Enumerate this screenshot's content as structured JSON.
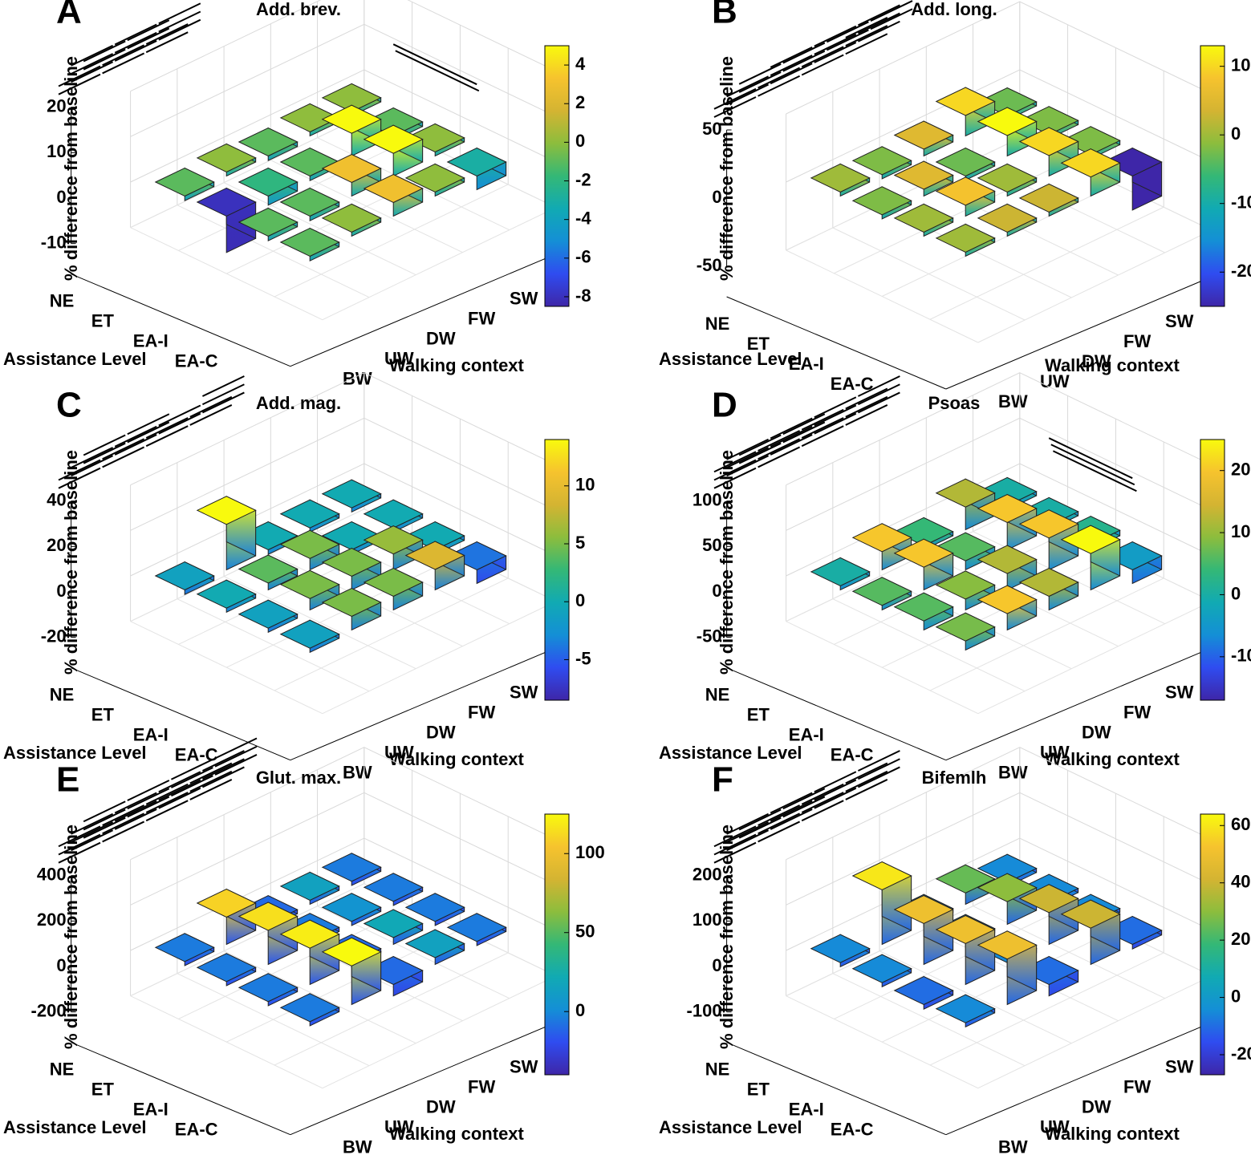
{
  "figure": {
    "row_labels": [
      "NE",
      "ET",
      "EA-I",
      "EA-C"
    ],
    "col_labels": [
      "BW",
      "UW",
      "DW",
      "FW",
      "SW"
    ],
    "ylabel": "% difference from baseline",
    "xlabel": "Walking context",
    "rowaxis_label": "Assistance Level"
  },
  "colormap": {
    "name": "parula",
    "stops": [
      "#3e26a8",
      "#2f4cf0",
      "#148fd6",
      "#11aab3",
      "#34b876",
      "#8cbd3d",
      "#d4b432",
      "#f6c32e",
      "#f8fa0d"
    ]
  },
  "chart_data": [
    {
      "type": "bar3d",
      "letter": "A",
      "title": "Add. brev.",
      "zticks": [
        20,
        10,
        0,
        -10
      ],
      "zlim": [
        -12,
        20
      ],
      "cbar_ticks": [
        4,
        2,
        0,
        -2,
        -4,
        -6,
        -8
      ],
      "cbar_lim": [
        -8.5,
        5
      ],
      "values": [
        [
          -1,
          0,
          -1,
          0,
          0
        ],
        [
          -8,
          -2,
          -1,
          5,
          -1
        ],
        [
          -1,
          -1,
          3,
          5,
          0
        ],
        [
          -1,
          0,
          3,
          0,
          -3
        ]
      ],
      "colors": [
        [
          -1,
          0,
          -1,
          0,
          0
        ],
        [
          -8,
          -2,
          -1,
          5,
          -1
        ],
        [
          -1,
          -1,
          3,
          5,
          0
        ],
        [
          -1,
          0,
          3,
          0,
          -3
        ]
      ],
      "sig_lines": [
        [
          2,
          2,
          2
        ],
        [
          3,
          3,
          3
        ],
        [
          2,
          2
        ]
      ],
      "sig_side_lines": 2
    },
    {
      "type": "bar3d",
      "letter": "B",
      "title": "Add. long.",
      "zticks": [
        50,
        0,
        -50
      ],
      "zlim": [
        -60,
        55
      ],
      "cbar_ticks": [
        10,
        0,
        -10,
        -20
      ],
      "cbar_lim": [
        -25,
        13
      ],
      "values": [
        [
          0,
          -2,
          5,
          15,
          -3
        ],
        [
          -2,
          5,
          -3,
          15,
          -2
        ],
        [
          0,
          8,
          0,
          15,
          -2
        ],
        [
          0,
          3,
          3,
          14,
          -25
        ]
      ],
      "colors": [
        [
          0,
          -2,
          5,
          10,
          -3
        ],
        [
          -2,
          5,
          -3,
          13,
          -2
        ],
        [
          0,
          8,
          0,
          10,
          -2
        ],
        [
          0,
          3,
          3,
          10,
          -25
        ]
      ],
      "sig_lines": [
        [
          2,
          2,
          2,
          3
        ],
        [
          2,
          3,
          3,
          3
        ],
        [
          2,
          2,
          2,
          2
        ]
      ],
      "sig_side_lines": 0
    },
    {
      "type": "bar3d",
      "letter": "C",
      "title": "Add. mag.",
      "zticks": [
        40,
        20,
        0,
        -20
      ],
      "zlim": [
        -25,
        45
      ],
      "cbar_ticks": [
        10,
        5,
        0,
        -5
      ],
      "cbar_lim": [
        -8.5,
        14
      ],
      "values": [
        [
          -2,
          20,
          -2,
          -1,
          -1
        ],
        [
          -1,
          3,
          5,
          -2,
          -1
        ],
        [
          -1,
          5,
          6,
          7,
          -2
        ],
        [
          -1,
          6,
          6,
          9,
          -6
        ]
      ],
      "colors": [
        [
          -1,
          14,
          0,
          0,
          0
        ],
        [
          0,
          4,
          5,
          0,
          0
        ],
        [
          -1,
          5,
          5,
          6,
          0
        ],
        [
          -1,
          5,
          5,
          9,
          -4
        ]
      ],
      "sig_lines": [
        [
          2,
          2,
          2,
          2
        ],
        [
          2,
          2,
          2,
          3
        ],
        [
          2,
          2
        ]
      ],
      "sig_side_lines": 0
    },
    {
      "type": "bar3d",
      "letter": "D",
      "title": "Psoas",
      "zticks": [
        100,
        50,
        0,
        -50
      ],
      "zlim": [
        -60,
        105
      ],
      "cbar_ticks": [
        20,
        10,
        0,
        -10
      ],
      "cbar_lim": [
        -17,
        25
      ],
      "values": [
        [
          0,
          20,
          1,
          25,
          4
        ],
        [
          5,
          25,
          10,
          30,
          4
        ],
        [
          10,
          12,
          18,
          35,
          6
        ],
        [
          10,
          18,
          15,
          40,
          -15
        ]
      ],
      "colors": [
        [
          0,
          20,
          4,
          12,
          0
        ],
        [
          6,
          20,
          6,
          20,
          0
        ],
        [
          6,
          9,
          12,
          20,
          2
        ],
        [
          8,
          20,
          12,
          25,
          -4
        ]
      ],
      "sig_lines": [
        [
          3,
          3,
          3,
          3
        ],
        [
          3,
          3,
          3,
          3
        ],
        [
          2,
          2
        ]
      ],
      "sig_side_lines": 3
    },
    {
      "type": "bar3d",
      "letter": "E",
      "title": "Glut. max.",
      "zticks": [
        400,
        200,
        0,
        -200
      ],
      "zlim": [
        -220,
        420
      ],
      "cbar_ticks": [
        100,
        50,
        0
      ],
      "cbar_lim": [
        -40,
        125
      ],
      "values": [
        [
          -5,
          120,
          -15,
          0,
          -5
        ],
        [
          -5,
          150,
          -5,
          -5,
          -5
        ],
        [
          -5,
          160,
          -10,
          30,
          -5
        ],
        [
          -5,
          170,
          -50,
          30,
          -5
        ]
      ],
      "colors": [
        [
          -5,
          110,
          -10,
          15,
          -5
        ],
        [
          -5,
          115,
          -5,
          5,
          -5
        ],
        [
          -5,
          120,
          -10,
          20,
          -5
        ],
        [
          -5,
          125,
          -10,
          15,
          -5
        ]
      ],
      "sig_lines": [
        [
          3,
          3,
          3,
          3
        ],
        [
          3,
          3,
          3,
          3
        ],
        [
          3,
          3,
          3,
          3
        ]
      ],
      "sig_side_lines": 0
    },
    {
      "type": "bar3d",
      "letter": "F",
      "title": "Bifemlh",
      "zticks": [
        200,
        100,
        0,
        -100
      ],
      "zlim": [
        -120,
        210
      ],
      "cbar_ticks": [
        60,
        40,
        20,
        0,
        -20
      ],
      "cbar_lim": [
        -27,
        64
      ],
      "values": [
        [
          -5,
          120,
          -5,
          25,
          -5
        ],
        [
          -5,
          90,
          -5,
          50,
          -5
        ],
        [
          -10,
          90,
          -5,
          70,
          -5
        ],
        [
          -5,
          100,
          -25,
          80,
          -10
        ]
      ],
      "colors": [
        [
          -5,
          60,
          -5,
          25,
          -5
        ],
        [
          -5,
          50,
          -5,
          30,
          -5
        ],
        [
          -10,
          50,
          -5,
          40,
          -5
        ],
        [
          -5,
          50,
          -10,
          40,
          -10
        ]
      ],
      "sig_lines": [
        [
          3,
          3,
          3,
          3
        ],
        [
          3,
          3,
          3,
          3
        ],
        [
          2,
          2
        ]
      ],
      "sig_side_lines": 0
    }
  ]
}
